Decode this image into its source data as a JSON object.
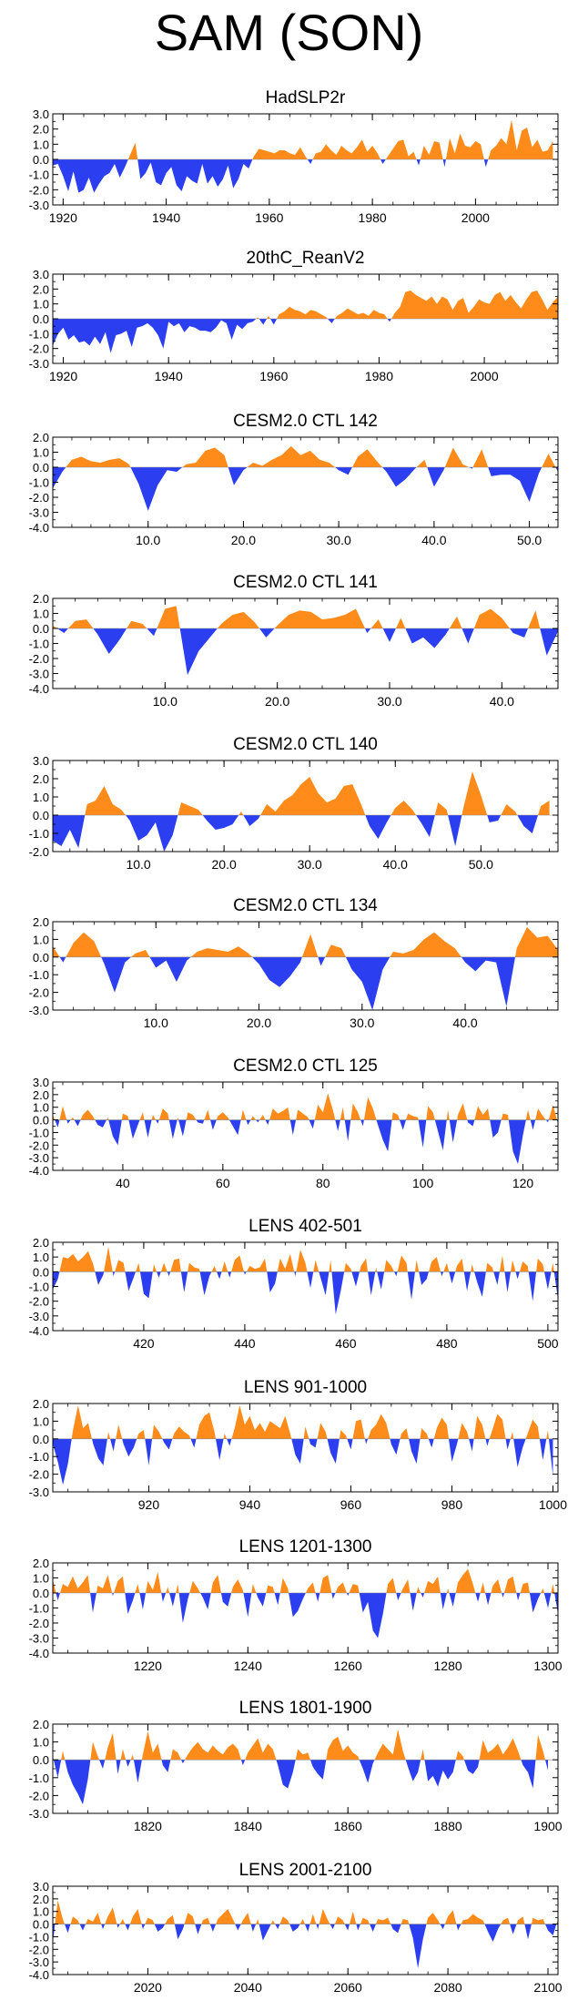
{
  "title": "SAM (SON)",
  "colors": {
    "positive": "#ff8c1a",
    "negative": "#2b3ff0",
    "axis": "#000000"
  },
  "chart_data": [
    {
      "type": "area",
      "title": "HadSLP2r",
      "xlim": [
        1918,
        2016
      ],
      "ylim": [
        -3.0,
        3.0
      ],
      "y_ticks": [
        "3.0",
        "2.0",
        "1.0",
        "0.0",
        "-1.0",
        "-2.0",
        "-3.0"
      ],
      "x_ticks": [
        "1920",
        "1940",
        "1960",
        "1980",
        "2000"
      ],
      "x_start": 1918,
      "x_step": 1,
      "values": [
        -0.4,
        -0.3,
        -1.1,
        -2.1,
        -0.8,
        -2.2,
        -2.0,
        -1.2,
        -2.2,
        -1.6,
        -1.1,
        -0.9,
        -0.3,
        -1.2,
        -0.5,
        0.3,
        1.1,
        -1.3,
        -0.9,
        -0.2,
        -1.5,
        -1.7,
        -0.9,
        -0.5,
        -1.7,
        -2.1,
        -1.1,
        -1.4,
        -1.6,
        -0.3,
        -1.6,
        -1.1,
        -1.8,
        -1.3,
        -0.4,
        -1.9,
        -1.3,
        -0.3,
        -0.6,
        0.2,
        0.7,
        0.6,
        0.5,
        0.4,
        0.6,
        0.6,
        0.4,
        0.3,
        0.8,
        0.2,
        -0.3,
        0.4,
        0.5,
        1.0,
        0.6,
        0.3,
        0.9,
        0.6,
        0.4,
        0.8,
        1.3,
        0.5,
        0.9,
        0.4,
        -0.3,
        0.2,
        0.7,
        1.2,
        1.3,
        0.2,
        0.5,
        -0.4,
        0.9,
        0.3,
        1.2,
        1.1,
        -0.5,
        1.4,
        0.4,
        1.7,
        0.9,
        0.8,
        1.2,
        1.0,
        -0.5,
        0.6,
        0.9,
        1.4,
        1.0,
        2.6,
        0.6,
        1.9,
        2.1,
        0.8,
        1.3,
        0.5,
        0.6,
        1.2
      ]
    },
    {
      "type": "area",
      "title": "20thC_ReanV2",
      "xlim": [
        1918,
        2014
      ],
      "ylim": [
        -3.0,
        3.0
      ],
      "y_ticks": [
        "3.0",
        "2.0",
        "1.0",
        "0.0",
        "-1.0",
        "-2.0",
        "-3.0"
      ],
      "x_ticks": [
        "1920",
        "1940",
        "1960",
        "1980",
        "2000"
      ],
      "x_start": 1918,
      "x_step": 1,
      "values": [
        -1.8,
        -1.0,
        -0.6,
        -1.4,
        -1.1,
        -1.6,
        -1.5,
        -1.8,
        -1.2,
        -1.7,
        -0.9,
        -2.3,
        -1.1,
        -1.0,
        -0.8,
        -1.9,
        -0.6,
        -0.5,
        -0.3,
        -0.6,
        -1.1,
        -2.0,
        -0.2,
        -0.5,
        -0.3,
        -0.9,
        -0.5,
        -0.6,
        -0.8,
        -0.8,
        -0.9,
        -0.6,
        -0.1,
        -0.3,
        -1.4,
        -0.4,
        -0.7,
        -0.3,
        -0.2,
        0.1,
        -0.4,
        0.2,
        -0.4,
        0.3,
        0.5,
        0.8,
        0.6,
        0.5,
        0.3,
        0.6,
        0.5,
        0.3,
        0.1,
        -0.3,
        0.2,
        0.4,
        0.7,
        0.5,
        0.3,
        0.4,
        0.2,
        0.6,
        0.4,
        0.3,
        -0.2,
        0.4,
        0.8,
        1.8,
        1.9,
        1.6,
        1.4,
        1.2,
        1.5,
        1.0,
        1.5,
        1.3,
        0.6,
        1.2,
        1.4,
        0.4,
        0.8,
        1.3,
        1.1,
        1.0,
        1.6,
        1.8,
        1.2,
        1.6,
        1.1,
        0.7,
        1.3,
        1.8,
        1.9,
        1.3,
        0.6,
        1.1,
        1.5
      ]
    },
    {
      "type": "area",
      "title": "CESM2.0 CTL 142",
      "xlim": [
        0,
        53
      ],
      "ylim": [
        -4.0,
        2.0
      ],
      "y_ticks": [
        "2.0",
        "1.0",
        "0.0",
        "-1.0",
        "-2.0",
        "-3.0",
        "-4.0"
      ],
      "x_ticks": [
        "10.0",
        "20.0",
        "30.0",
        "40.0",
        "50.0"
      ],
      "x_start": 0,
      "x_step": 1,
      "values": [
        -1.4,
        -0.3,
        0.5,
        0.7,
        0.4,
        0.3,
        0.5,
        0.6,
        0.2,
        -1.1,
        -2.9,
        -1.2,
        -0.2,
        -0.3,
        0.2,
        0.3,
        1.1,
        1.3,
        0.8,
        -1.2,
        -0.2,
        0.3,
        0.1,
        0.5,
        0.8,
        1.4,
        0.8,
        1.1,
        0.5,
        0.3,
        -0.2,
        -0.5,
        0.7,
        1.2,
        0.4,
        -0.3,
        -1.3,
        -0.8,
        -0.1,
        0.5,
        -1.3,
        -0.2,
        1.3,
        0.2,
        -0.1,
        1.2,
        -0.6,
        -0.5,
        -0.5,
        -0.9,
        -2.3,
        -0.4,
        0.9,
        -0.3
      ]
    },
    {
      "type": "area",
      "title": "CESM2.0 CTL 141",
      "xlim": [
        0,
        45
      ],
      "ylim": [
        -4.0,
        2.0
      ],
      "y_ticks": [
        "2.0",
        "1.0",
        "0.0",
        "-1.0",
        "-2.0",
        "-3.0",
        "-4.0"
      ],
      "x_ticks": [
        "10.0",
        "20.0",
        "30.0",
        "40.0"
      ],
      "x_start": 0,
      "x_step": 1,
      "values": [
        0.2,
        -0.3,
        0.5,
        0.6,
        -0.4,
        -1.7,
        -0.7,
        0.5,
        0.3,
        -0.5,
        1.3,
        1.5,
        -3.1,
        -1.5,
        -0.6,
        0.3,
        0.9,
        1.1,
        0.4,
        -0.6,
        0.2,
        0.9,
        1.2,
        1.1,
        0.6,
        0.7,
        0.9,
        1.3,
        -0.3,
        0.6,
        -0.9,
        0.7,
        -1.0,
        -0.6,
        -1.3,
        -0.4,
        0.8,
        -1.0,
        0.9,
        1.3,
        0.7,
        -0.3,
        -0.6,
        1.2,
        -1.8,
        -0.2
      ]
    },
    {
      "type": "area",
      "title": "CESM2.0 CTL 140",
      "xlim": [
        0,
        59
      ],
      "ylim": [
        -2.0,
        3.0
      ],
      "y_ticks": [
        "3.0",
        "2.0",
        "1.0",
        "0.0",
        "-1.0",
        "-2.0"
      ],
      "x_ticks": [
        "10.0",
        "20.0",
        "30.0",
        "40.0",
        "50.0"
      ],
      "x_start": 0,
      "x_step": 1,
      "values": [
        -1.4,
        -1.7,
        -0.8,
        -1.8,
        0.6,
        0.8,
        1.6,
        0.6,
        0.3,
        -0.3,
        -1.4,
        -1.1,
        -0.4,
        -2.0,
        -1.1,
        0.7,
        0.5,
        0.3,
        -0.3,
        -0.8,
        -0.7,
        -0.5,
        0.2,
        -0.6,
        -0.2,
        0.6,
        0.2,
        0.8,
        1.1,
        1.7,
        2.1,
        1.2,
        0.7,
        0.9,
        1.6,
        1.7,
        0.6,
        -0.6,
        -1.3,
        -0.4,
        0.4,
        0.8,
        0.3,
        -0.4,
        -1.2,
        0.7,
        0.3,
        -1.7,
        0.5,
        2.4,
        1.1,
        -0.4,
        -0.3,
        0.6,
        0.2,
        -0.6,
        -1.0,
        0.5,
        0.8
      ]
    },
    {
      "type": "area",
      "title": "CESM2.0 CTL 134",
      "xlim": [
        0,
        49
      ],
      "ylim": [
        -3.0,
        2.0
      ],
      "y_ticks": [
        "2.0",
        "1.0",
        "0.0",
        "-1.0",
        "-2.0",
        "-3.0"
      ],
      "x_ticks": [
        "10.0",
        "20.0",
        "30.0",
        "40.0"
      ],
      "x_start": 0,
      "x_step": 1,
      "values": [
        0.6,
        -0.3,
        0.8,
        1.4,
        0.9,
        -0.4,
        -2.0,
        -0.3,
        0.2,
        0.4,
        -0.6,
        -0.2,
        -1.4,
        -0.2,
        0.3,
        0.5,
        0.4,
        0.3,
        0.6,
        0.2,
        -0.4,
        -1.3,
        -1.7,
        -1.1,
        -0.3,
        1.3,
        -0.5,
        0.7,
        0.5,
        -0.7,
        -1.4,
        -3.0,
        -0.7,
        0.3,
        0.2,
        0.4,
        1.0,
        1.4,
        0.9,
        0.5,
        -0.3,
        -0.8,
        -0.2,
        -0.3,
        -2.8,
        0.5,
        1.7,
        1.1,
        1.2,
        0.4
      ]
    },
    {
      "type": "area",
      "title": "CESM2.0 CTL 125",
      "xlim": [
        26,
        127
      ],
      "ylim": [
        -4.0,
        3.0
      ],
      "y_ticks": [
        "3.0",
        "2.0",
        "1.0",
        "0.0",
        "-1.0",
        "-2.0",
        "-3.0",
        "-4.0"
      ],
      "x_ticks": [
        "40",
        "60",
        "80",
        "100",
        "120"
      ],
      "x_start": 26,
      "x_step": 1,
      "values": [
        0.4,
        -0.6,
        1.1,
        -0.3,
        0.2,
        -0.5,
        0.4,
        0.8,
        0.3,
        -0.4,
        -0.6,
        0.2,
        -1.3,
        -2.0,
        0.5,
        0.3,
        -1.5,
        -0.4,
        0.6,
        -1.4,
        0.4,
        -0.3,
        0.9,
        0.5,
        -1.5,
        0.2,
        -1.3,
        0.6,
        0.4,
        -0.2,
        -0.3,
        0.8,
        -0.8,
        0.3,
        0.6,
        0.2,
        -0.5,
        -1.2,
        0.8,
        -0.4,
        0.3,
        -0.2,
        0.4,
        -0.4,
        0.9,
        0.5,
        0.7,
        1.0,
        -1.2,
        0.8,
        0.5,
        0.2,
        -0.7,
        1.2,
        0.6,
        2.1,
        0.8,
        -0.9,
        1.0,
        -1.7,
        1.3,
        0.6,
        -0.5,
        1.8,
        0.9,
        -0.4,
        -1.6,
        -2.5,
        0.6,
        0.4,
        -0.8,
        0.5,
        0.3,
        0.2,
        -2.2,
        1.1,
        0.6,
        -0.9,
        -2.4,
        0.8,
        -1.8,
        0.4,
        1.3,
        -0.2,
        -0.5,
        1.1,
        0.4,
        0.9,
        -1.4,
        -1.0,
        0.5,
        0.4,
        -2.5,
        -3.5,
        -1.2,
        0.8,
        -0.8,
        0.9,
        0.3,
        -0.2,
        1.2,
        -0.3
      ]
    },
    {
      "type": "area",
      "title": "LENS 402-501",
      "xlim": [
        402,
        502
      ],
      "ylim": [
        -4.0,
        2.0
      ],
      "y_ticks": [
        "2.0",
        "1.0",
        "0.0",
        "-1.0",
        "-2.0",
        "-3.0",
        "-4.0"
      ],
      "x_ticks": [
        "420",
        "440",
        "460",
        "480",
        "500"
      ],
      "x_start": 402,
      "x_step": 1,
      "values": [
        -1.2,
        -0.5,
        1.0,
        0.9,
        1.2,
        0.7,
        1.0,
        1.4,
        0.5,
        -0.9,
        -0.2,
        1.7,
        -0.3,
        0.8,
        0.6,
        -1.3,
        -0.4,
        0.6,
        -1.5,
        -1.8,
        0.5,
        -0.4,
        0.6,
        -0.3,
        0.8,
        0.9,
        -1.4,
        0.6,
        0.3,
        0.2,
        -1.6,
        -0.3,
        0.4,
        -0.5,
        0.7,
        -0.4,
        0.8,
        1.1,
        -0.2,
        0.4,
        0.2,
        0.3,
        0.9,
        -1.4,
        -0.8,
        0.9,
        0.2,
        1.2,
        -0.3,
        1.5,
        0.6,
        -1.1,
        0.8,
        -0.4,
        -1.6,
        0.8,
        -2.9,
        -1.3,
        0.6,
        0.2,
        -1.0,
        0.4,
        0.9,
        -1.6,
        0.3,
        -1.2,
        0.8,
        0.4,
        -0.3,
        1.1,
        0.6,
        -1.9,
        0.8,
        -0.9,
        -0.5,
        0.7,
        1.0,
        -0.3,
        0.6,
        -0.8,
        0.4,
        0.9,
        -1.3,
        0.5,
        -0.7,
        -1.7,
        0.6,
        0.3,
        -0.9,
        1.1,
        -1.4,
        0.8,
        -0.5,
        0.7,
        0.4,
        -2.0,
        0.9,
        0.5,
        -1.2,
        0.6,
        -1.9
      ]
    },
    {
      "type": "area",
      "title": "LENS 901-1000",
      "xlim": [
        901,
        1001
      ],
      "ylim": [
        -3.0,
        2.0
      ],
      "y_ticks": [
        "2.0",
        "1.0",
        "0.0",
        "-1.0",
        "-2.0",
        "-3.0"
      ],
      "x_ticks": [
        "920",
        "940",
        "960",
        "980",
        "1000"
      ],
      "x_start": 901,
      "x_step": 1,
      "values": [
        -0.3,
        -1.3,
        -2.6,
        -1.4,
        0.5,
        1.9,
        0.6,
        0.9,
        -0.3,
        -1.1,
        -1.5,
        0.4,
        -0.7,
        0.8,
        -0.3,
        -1.0,
        -0.5,
        0.3,
        0.5,
        -1.5,
        0.8,
        0.4,
        -0.2,
        -0.6,
        0.3,
        0.7,
        0.4,
        0.2,
        -0.5,
        0.8,
        1.3,
        1.5,
        0.4,
        -1.2,
        0.3,
        -0.4,
        0.6,
        1.9,
        0.8,
        1.3,
        0.5,
        0.9,
        0.4,
        1.0,
        0.8,
        0.6,
        1.3,
        0.3,
        -0.9,
        -1.4,
        0.7,
        -0.3,
        -0.5,
        0.9,
        0.4,
        -0.8,
        -1.4,
        0.5,
        0.2,
        -0.6,
        1.0,
        1.1,
        -0.3,
        0.5,
        0.8,
        1.4,
        0.9,
        -0.3,
        -0.9,
        0.3,
        0.6,
        -0.7,
        -1.4,
        0.6,
        0.3,
        -0.5,
        0.6,
        1.2,
        0.8,
        -1.3,
        -0.3,
        0.9,
        0.4,
        -0.7,
        1.3,
        0.8,
        -0.4,
        0.5,
        1.4,
        1.1,
        -0.6,
        0.4,
        -1.6,
        -0.5,
        0.3,
        1.1,
        0.7,
        -1.2,
        0.5,
        -2.1
      ]
    },
    {
      "type": "area",
      "title": "LENS 1201-1300",
      "xlim": [
        1201,
        1302
      ],
      "ylim": [
        -4.0,
        2.0
      ],
      "y_ticks": [
        "2.0",
        "1.0",
        "0.0",
        "-1.0",
        "-2.0",
        "-3.0",
        "-4.0"
      ],
      "x_ticks": [
        "1220",
        "1240",
        "1260",
        "1280",
        "1300"
      ],
      "x_start": 1201,
      "x_step": 1,
      "values": [
        0.9,
        -0.5,
        0.6,
        0.4,
        1.1,
        0.3,
        0.7,
        1.2,
        -1.3,
        0.5,
        0.3,
        1.2,
        -0.2,
        0.8,
        1.1,
        -1.4,
        -0.5,
        0.6,
        -1.1,
        0.8,
        0.2,
        1.4,
        -0.6,
        0.4,
        -0.9,
        0.6,
        -2.0,
        -0.4,
        0.8,
        0.3,
        -0.3,
        -1.1,
        0.7,
        1.2,
        -0.6,
        -0.9,
        0.4,
        0.9,
        0.2,
        -1.6,
        0.6,
        -0.3,
        -0.9,
        0.5,
        0.4,
        -0.8,
        1.0,
        0.3,
        -1.6,
        -1.2,
        -0.4,
        0.3,
        0.7,
        -0.6,
        1.0,
        1.2,
        -0.4,
        0.4,
        0.7,
        -0.2,
        0.6,
        0.5,
        -1.3,
        -0.6,
        -2.5,
        -3.0,
        -1.4,
        0.6,
        1.0,
        -0.5,
        0.3,
        0.9,
        -1.2,
        0.4,
        -0.3,
        0.8,
        0.6,
        1.1,
        -1.1,
        0.3,
        -0.9,
        0.7,
        1.2,
        1.6,
        0.6,
        -0.6,
        0.7,
        -0.8,
        0.5,
        0.9,
        -0.3,
        0.9,
        1.1,
        -0.5,
        0.6,
        0.7,
        -1.3,
        -0.4,
        0.3,
        -1.0,
        0.6,
        -1.4
      ]
    },
    {
      "type": "area",
      "title": "LENS 1801-1900",
      "xlim": [
        1801,
        1902
      ],
      "ylim": [
        -3.0,
        2.0
      ],
      "y_ticks": [
        "2.0",
        "1.0",
        "0.0",
        "-1.0",
        "-2.0",
        "-3.0"
      ],
      "x_ticks": [
        "1820",
        "1840",
        "1860",
        "1880",
        "1900"
      ],
      "x_start": 1801,
      "x_step": 1,
      "values": [
        0.2,
        -1.0,
        0.5,
        -0.7,
        -1.4,
        -1.9,
        -2.5,
        -1.1,
        1.0,
        0.2,
        -0.5,
        0.7,
        1.5,
        -0.8,
        0.6,
        -0.4,
        0.3,
        -1.3,
        0.3,
        1.6,
        0.4,
        0.9,
        -0.3,
        -0.7,
        0.6,
        0.4,
        -0.2,
        0.3,
        0.7,
        1.0,
        0.6,
        0.4,
        0.8,
        0.5,
        0.3,
        0.7,
        0.9,
        0.6,
        -0.3,
        0.4,
        0.8,
        1.2,
        0.4,
        0.9,
        0.6,
        -0.3,
        -1.4,
        -1.6,
        -0.7,
        0.6,
        0.3,
        0.4,
        -0.4,
        -0.8,
        -1.1,
        0.6,
        1.1,
        1.3,
        0.5,
        0.8,
        0.4,
        0.2,
        -0.5,
        -1.3,
        -0.2,
        0.4,
        0.9,
        0.6,
        0.3,
        1.7,
        0.5,
        -0.4,
        -1.2,
        -0.7,
        0.6,
        -1.2,
        -0.9,
        -1.5,
        -0.6,
        -1.1,
        -0.7,
        0.5,
        0.2,
        -0.6,
        -0.8,
        -0.4,
        1.1,
        0.4,
        0.6,
        0.9,
        0.3,
        0.7,
        1.2,
        0.5,
        -0.3,
        -0.7,
        -1.6,
        1.4,
        0.5,
        -0.6
      ]
    },
    {
      "type": "area",
      "title": "LENS 2001-2100",
      "xlim": [
        2001,
        2102
      ],
      "ylim": [
        -4.0,
        3.0
      ],
      "y_ticks": [
        "3.0",
        "2.0",
        "1.0",
        "0.0",
        "-1.0",
        "-2.0",
        "-3.0",
        "-4.0"
      ],
      "x_ticks": [
        "2020",
        "2040",
        "2060",
        "2080",
        "2100"
      ],
      "x_start": 2001,
      "x_step": 1,
      "values": [
        -1.5,
        1.9,
        0.4,
        -0.7,
        0.6,
        0.3,
        -0.5,
        0.4,
        0.2,
        0.9,
        -0.4,
        0.6,
        1.3,
        -0.3,
        0.4,
        -0.5,
        0.6,
        1.2,
        -0.4,
        0.5,
        0.3,
        -0.6,
        -0.3,
        0.4,
        0.7,
        -1.2,
        -0.4,
        0.9,
        0.6,
        -0.8,
        0.3,
        0.5,
        -0.6,
        0.4,
        0.8,
        1.2,
        0.4,
        -0.5,
        0.3,
        0.9,
        -0.6,
        0.4,
        -1.3,
        -0.5,
        0.3,
        -0.4,
        0.6,
        0.3,
        -0.6,
        -0.3,
        0.4,
        -0.6,
        0.8,
        -0.4,
        1.2,
        0.3,
        -0.4,
        0.6,
        0.3,
        -0.5,
        1.0,
        -0.5,
        0.5,
        0.3,
        -0.6,
        0.4,
        0.3,
        0.5,
        -0.4,
        -0.7,
        0.4,
        0.3,
        -1.1,
        -3.5,
        -1.2,
        0.5,
        0.9,
        0.3,
        -0.4,
        0.6,
        1.1,
        -0.5,
        0.3,
        0.4,
        0.8,
        0.5,
        0.3,
        -0.6,
        -1.4,
        -0.4,
        0.3,
        0.5,
        -0.8,
        0.3,
        0.6,
        -1.2,
        0.5,
        0.3,
        0.4,
        -0.5,
        -0.9,
        0.4
      ]
    }
  ]
}
